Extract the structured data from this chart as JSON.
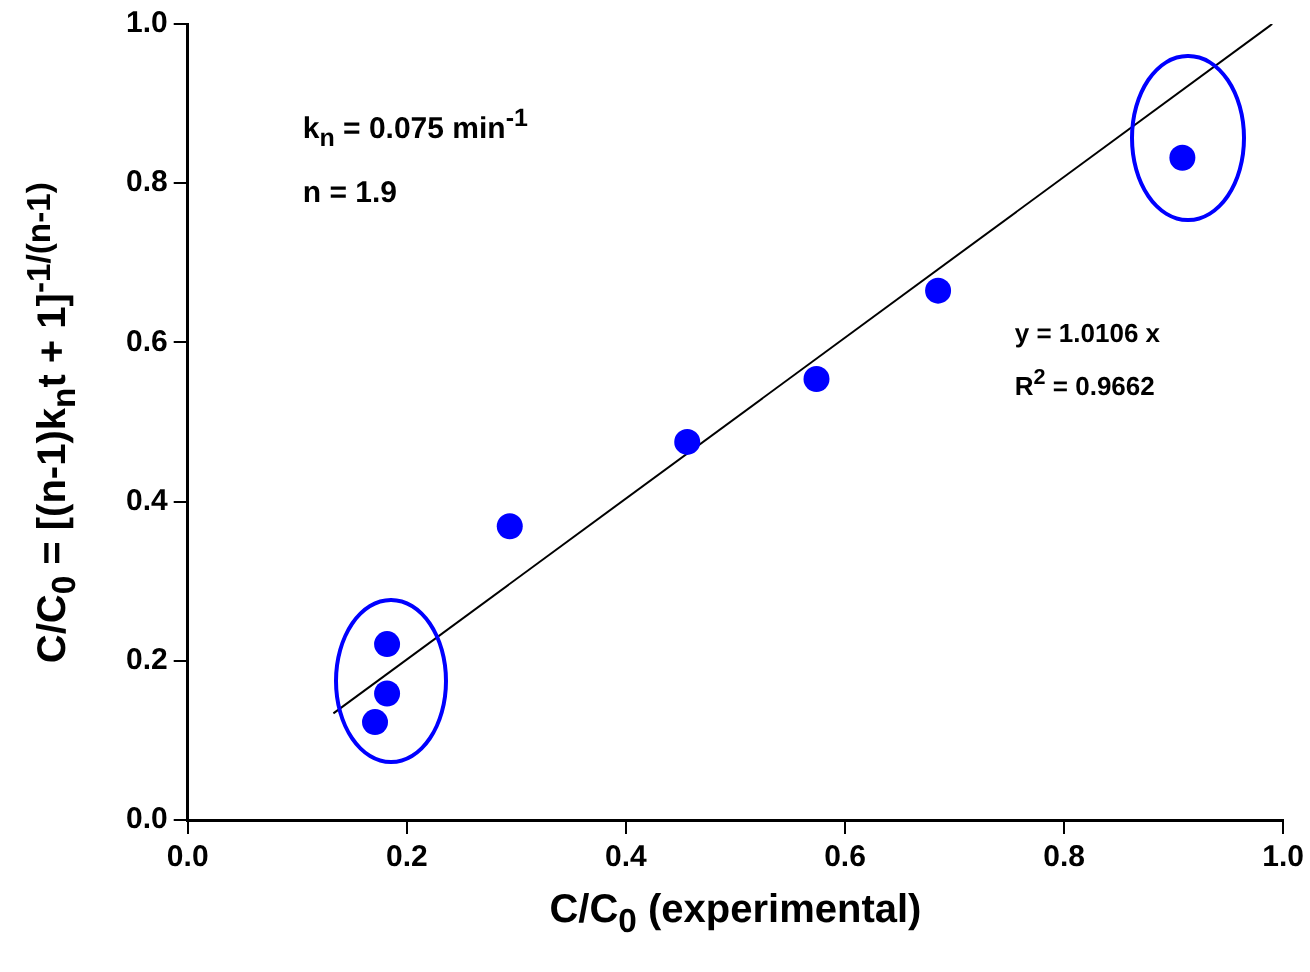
{
  "chart_data": {
    "type": "scatter",
    "xlabel": "C/C$_{0}$ (experimental)",
    "ylabel": "C/C$_{0}$ = [(n-1)k$_{n}$t + 1]$^{-1/(n-1)}$",
    "annotations": [
      "k$_{n}$ = 0.075 min$^{-1}$",
      "n = 1.9",
      "y = 1.0106 x",
      "R$^{2}$ = 0.9662"
    ],
    "series": [
      {
        "color": "#0000ff",
        "marker": "circle",
        "x": [
          0.908,
          0.685,
          0.574,
          0.456,
          0.294,
          0.182,
          0.182,
          0.171
        ],
        "values": [
          0.832,
          0.665,
          0.554,
          0.475,
          0.369,
          0.221,
          0.159,
          0.123
        ]
      },
      {
        "type": "line",
        "color": "#000000",
        "marker": "none",
        "line_style": "solid",
        "x": [
          0.133,
          0.99
        ],
        "values": [
          0.134,
          1.0
        ]
      }
    ],
    "xlim": [
      0,
      1
    ],
    "ylim": [
      0,
      1
    ],
    "xticks": [
      {
        "value": 0,
        "label": "0.0"
      },
      0.2,
      0.4,
      0.6,
      0.8,
      {
        "value": 1,
        "label": "1.0"
      }
    ],
    "yticks": [
      {
        "value": 0,
        "label": "0.0"
      },
      0.2,
      0.4,
      0.6,
      0.8,
      {
        "value": 1,
        "label": "1.0"
      }
    ],
    "grid": false,
    "legend": false
  }
}
